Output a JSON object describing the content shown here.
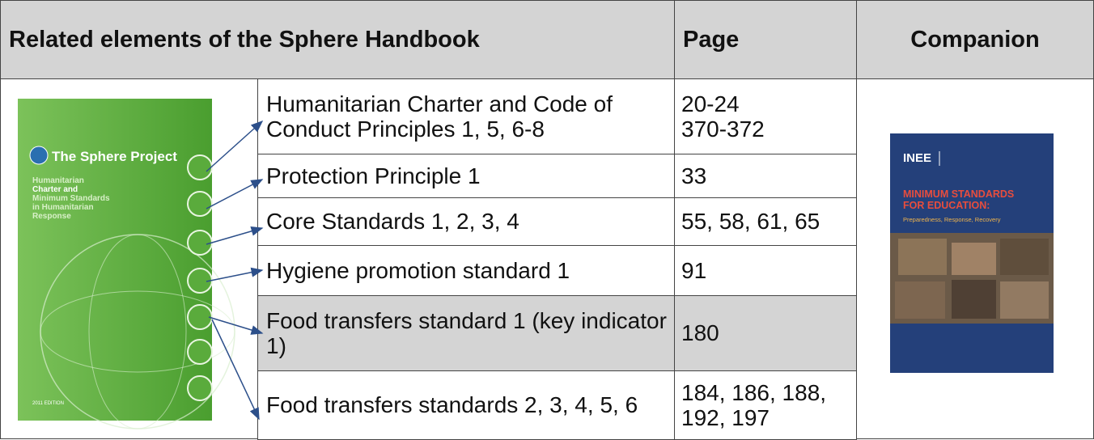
{
  "header": {
    "title": "Related elements of the Sphere Handbook",
    "page": "Page",
    "companion": "Companion"
  },
  "table": {
    "rows": [
      {
        "element": "Humanitarian Charter and Code of Conduct Principles 1, 5, 6-8",
        "pages": [
          "20-24",
          "370-372"
        ]
      },
      {
        "element": "Protection Principle 1",
        "pages": [
          "33"
        ]
      },
      {
        "element": "Core Standards 1, 2, 3, 4",
        "pages": [
          "55, 58, 61, 65"
        ]
      },
      {
        "element": "Hygiene promotion standard 1",
        "pages": [
          "91"
        ]
      },
      {
        "element": "Food transfers standard 1 (key indicator 1)",
        "pages": [
          "180"
        ]
      },
      {
        "element": "Food transfers standards 2, 3, 4, 5, 6",
        "pages": [
          "184, 186, 188,",
          "192, 197"
        ]
      }
    ]
  },
  "sphere_cover": {
    "title": "The Sphere Project",
    "subtitle": [
      "Humanitarian",
      "Charter and",
      "Minimum Standards",
      "in Humanitarian",
      "Response"
    ],
    "edition": "2011 EDITION"
  },
  "inee_cover": {
    "logo": "INEE",
    "title": [
      "MINIMUM STANDARDS",
      "FOR EDUCATION:"
    ],
    "subtitle": "Preparedness, Response, Recovery"
  }
}
